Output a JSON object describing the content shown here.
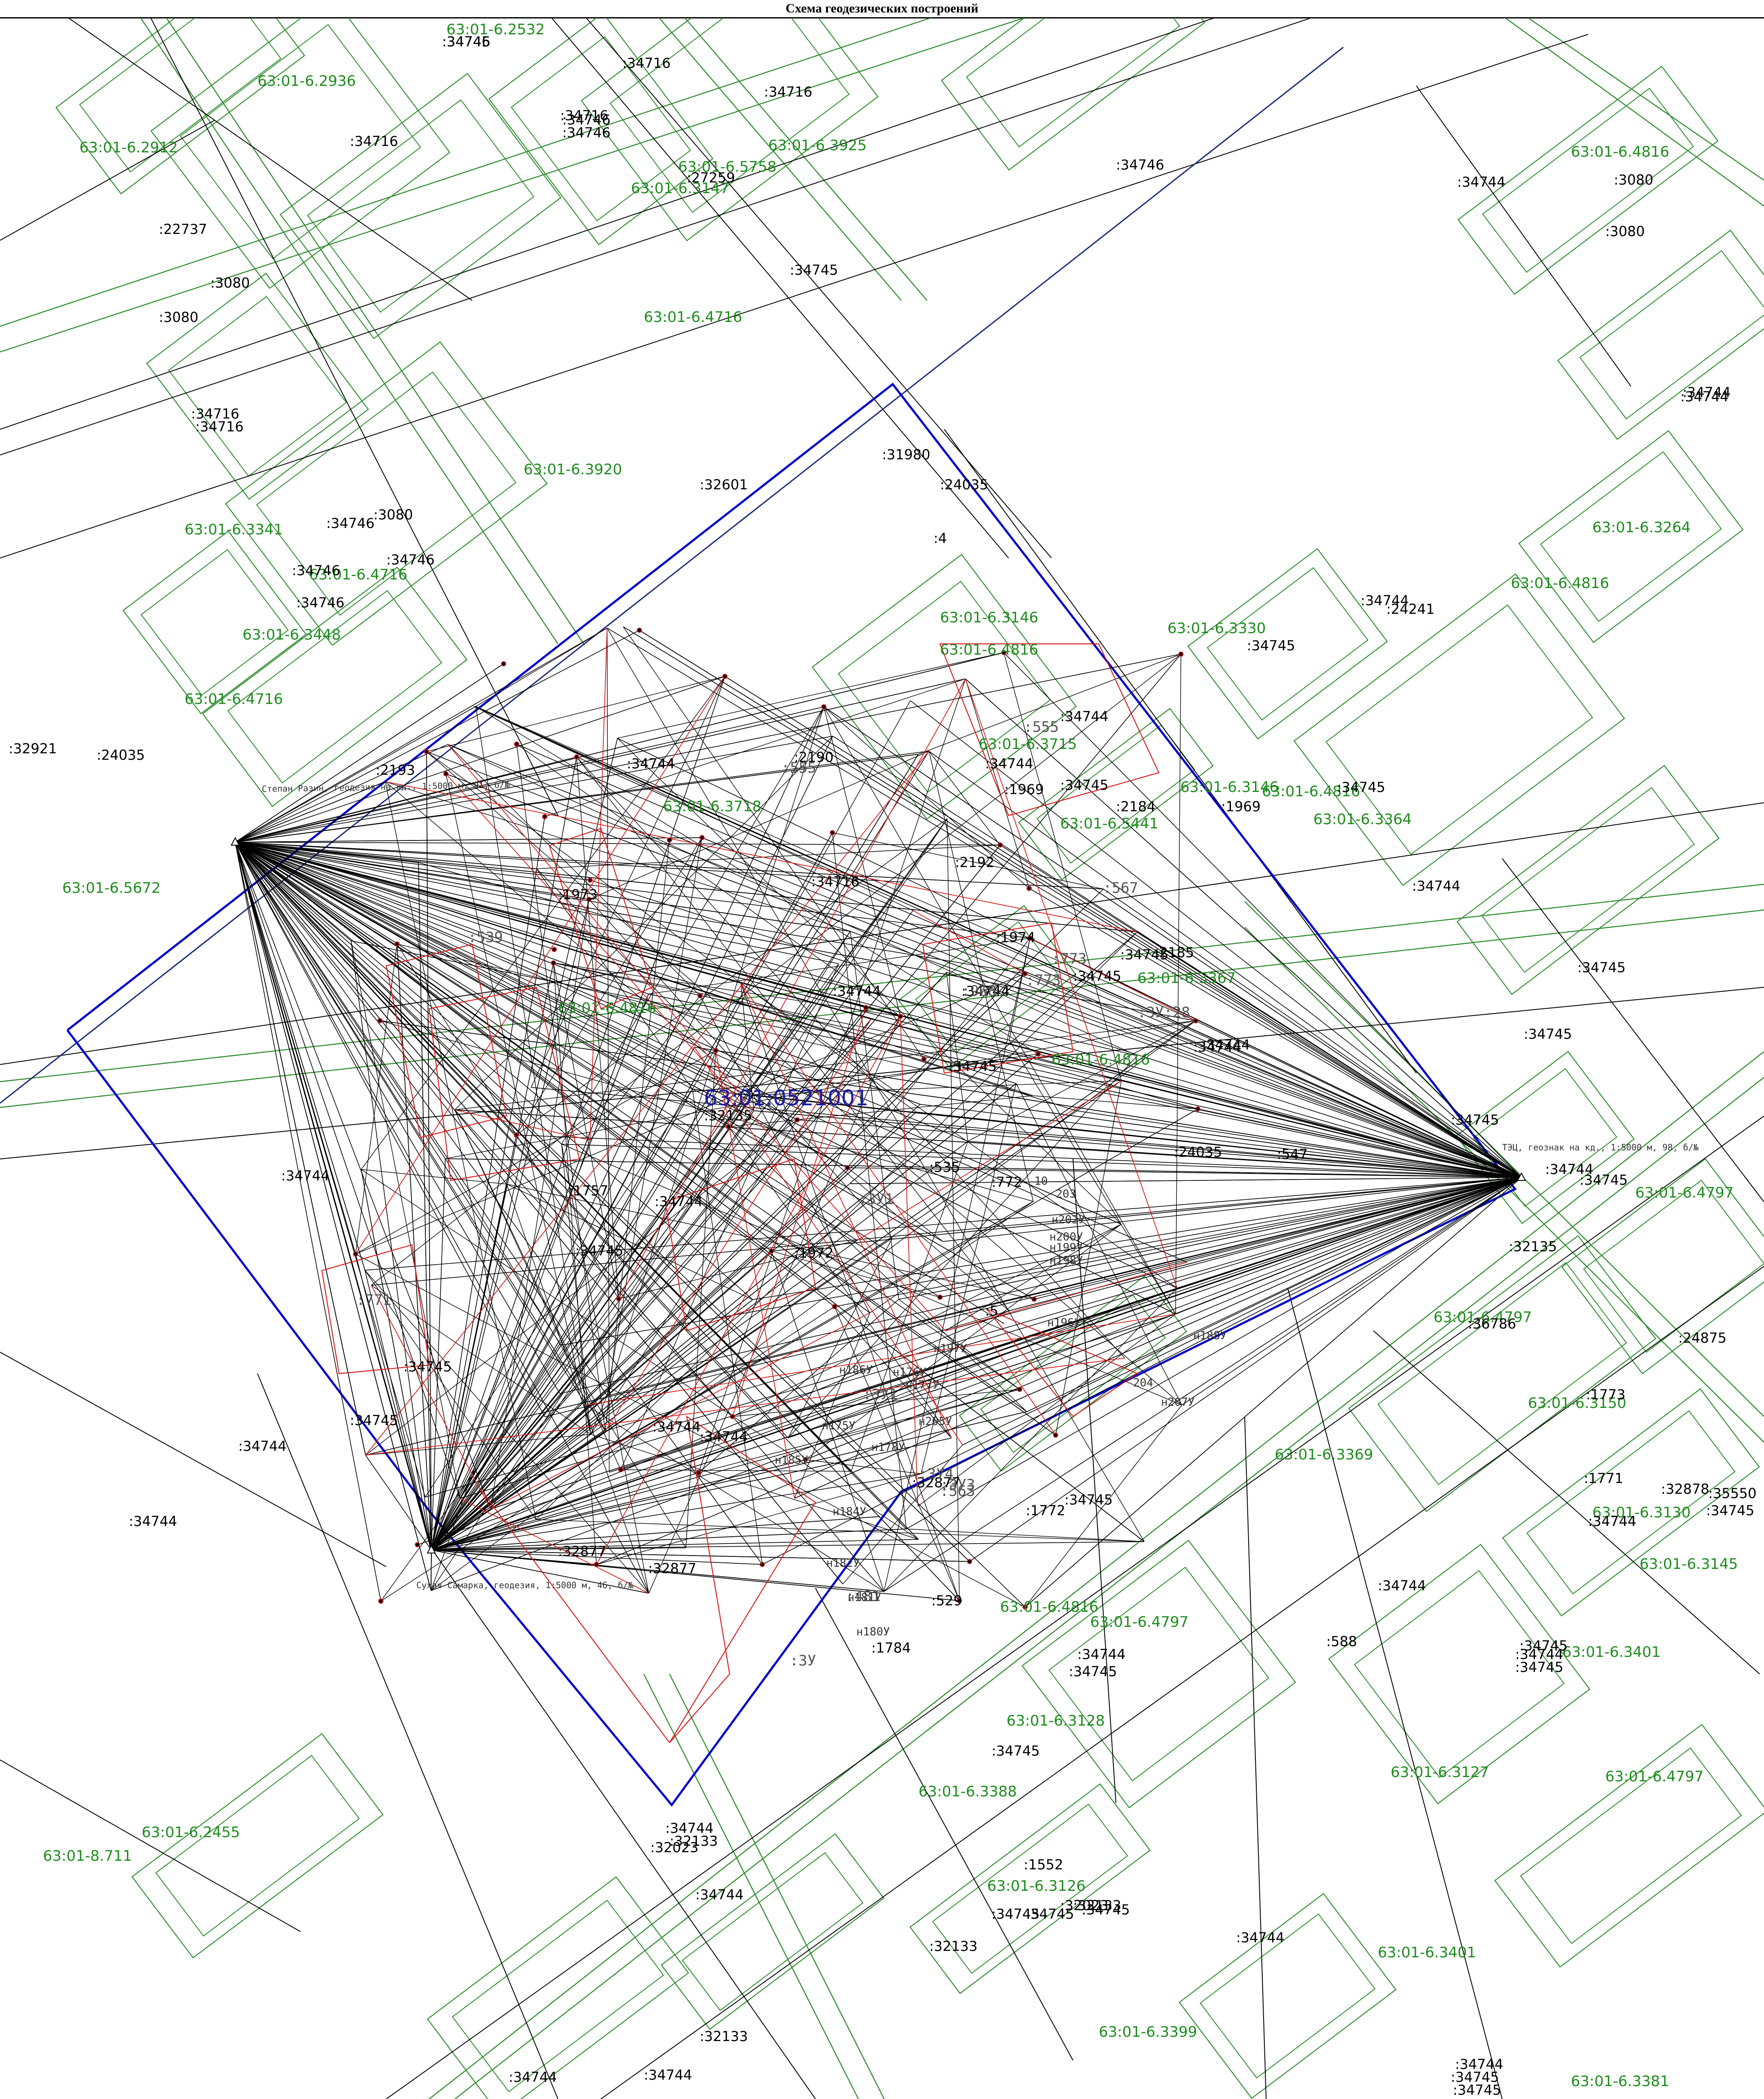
{
  "title": "Схема геодезических построений",
  "colors": {
    "parcel_outline": "#2e8b2e",
    "parcel_label": "#1e8c1e",
    "block_boundary": "#0000cc",
    "block_label": "#1a1aa8",
    "survey_lines": "#000000",
    "red_traverse": "#d81b1b",
    "black_label": "#000000"
  },
  "block_number": "63:01:0521001",
  "stations": [
    {
      "id": "A",
      "label": "Степан Разин, геодезия на кд., 1:5000 м, 91, б/№"
    },
    {
      "id": "B",
      "label": "ТЭЦ, геознак на кд., 1:5000 м, 98, б/№"
    },
    {
      "id": "C",
      "label": "Сухая Самарка, геодезия, 1:5000 м, 46, б/№"
    }
  ],
  "green_labels": [
    "63:01-6.2532",
    "63:01-6.2936",
    "63:01-6.2912",
    "63:01-6.5758",
    "63:01-6.3925",
    "63:01-6.3147",
    "63:01-6.4716",
    "63:01-6.4816",
    "63:01-6.3920",
    "63:01-6.3341",
    "63:01-6.4716",
    "63:01-6.3448",
    "63:01-6.4716",
    "63:01-6.3264",
    "63:01-6.4816",
    "63:01-6.3330",
    "63:01-6.3146",
    "63:01-6.4816",
    "63:01-6.3715",
    "63:01-6.3718",
    "63:01-6.5441",
    "63:01-6.3146",
    "63:01-6.4816",
    "63:01-6.3364",
    "63:01-6.5672",
    "63:01-6.4816",
    "63:01-6.3367",
    "63:01-6.4816",
    "63:01-6.4797",
    "63:01-6.4797",
    "63:01-6.3150",
    "63:01-6.3369",
    "63:01-6.3130",
    "63:01-6.3145",
    "63:01-6.4816",
    "63:01-6.4797",
    "63:01-6.3401",
    "63:01-6.3128",
    "63:01-6.3127",
    "63:01-6.4797",
    "63:01-6.3388",
    "63:01-6.2455",
    "63:01-8.711",
    "63:01-6.3126",
    "63:01-6.3401",
    "63:01-6.3399",
    "63:01-6.3381"
  ],
  "black_labels": [
    ":34746",
    ":34716",
    ":34716",
    ":34716",
    ":34746",
    ":34746",
    ":27259",
    ":34716",
    ":22737",
    ":3080",
    ":3080",
    ":34745",
    ":34746",
    ":34716",
    ":34716",
    ":3080",
    ":34746",
    ":34746",
    ":34746",
    ":34746",
    ":32601",
    ":31980",
    ":24035",
    ":4",
    ":34745",
    ":3080",
    ":3080",
    ":34744",
    ":34744",
    ":34744",
    ":34744",
    ":24241",
    ":34744",
    ":34745",
    ":34744",
    ":1969",
    ":2184",
    ":1969",
    ":34745",
    ":34744",
    ":34744",
    ":2190",
    ":2193",
    ":32921",
    ":24035",
    ":34716",
    ":2192",
    ":1973",
    ":1974",
    ":34745",
    ":2185",
    ":34745",
    ":34745",
    ":34745",
    ":34744",
    ":34744",
    ":34744",
    ":34745",
    ":34744",
    ":34745",
    ":34744",
    ":34745",
    ":32135",
    ":32135",
    ":24035",
    ":547",
    ":535",
    ":772",
    ":1757",
    ":34744",
    ":1972",
    ":34745",
    ":34744",
    ":34745",
    ":34745",
    ":5",
    ":36786",
    ":24875",
    ":1773",
    ":34744",
    ":34744",
    ":32877",
    ":1772",
    ":34745",
    ":1771",
    ":32878",
    ":35550",
    ":34745",
    ":34744",
    ":34744",
    ":34744",
    ":32877",
    ":32877",
    ":1784",
    ":529",
    ":34744",
    ":588",
    ":34744",
    ":34745",
    ":34745",
    ":34744",
    ":34745",
    ":34745",
    ":34744",
    ":32133",
    ":32023",
    ":34744",
    ":1552",
    ":32023",
    ":34745",
    ":34745",
    ":34744",
    ":34745",
    ":32133",
    ":32133",
    ":32133",
    ":34744",
    ":34744",
    ":34744",
    ":34745",
    ":34745",
    ":34745"
  ],
  "grey_labels": [
    ":555",
    ":555",
    ":567",
    ":773",
    ":773",
    ":968",
    ":ЗУ:28",
    ":539",
    ":771",
    ":ЗУ1",
    ":ЗУ3",
    ":ЗУ4",
    ":563",
    ":ЗУ1",
    ":481",
    ":ЗУ"
  ],
  "point_labels": [
    "н186У",
    "н176У",
    "н177У",
    "н175У",
    "н178У",
    "н185У",
    "н184У",
    "н182У",
    "н180У",
    "н181У",
    "н207У",
    "н205У",
    "н197У",
    "н196У",
    "н199У",
    "н198У",
    "н200У",
    "н202У",
    "н188У",
    "10",
    "203",
    "204"
  ]
}
